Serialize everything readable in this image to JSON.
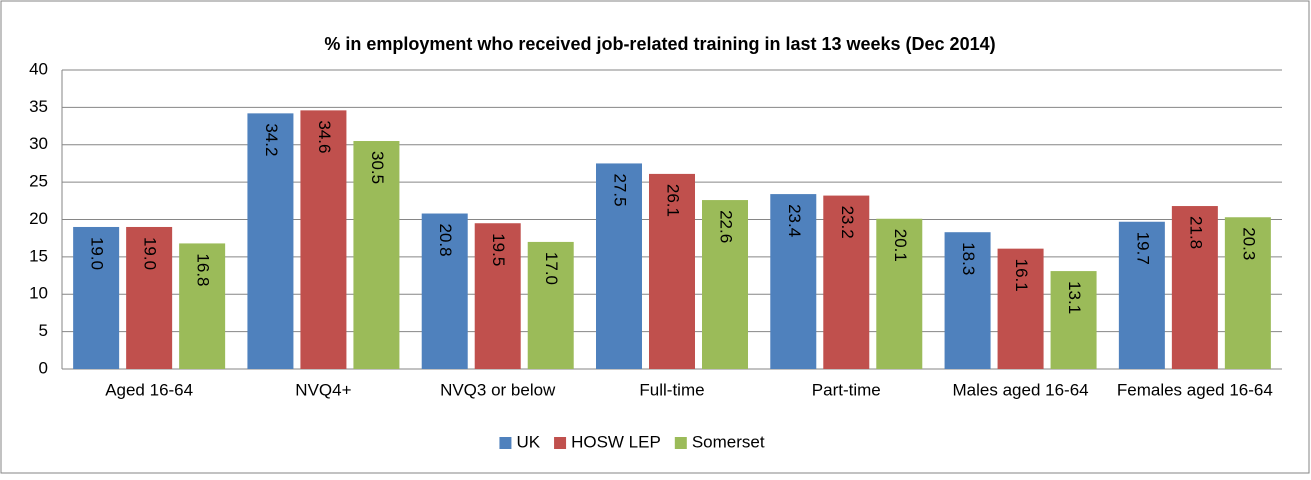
{
  "chart_data": {
    "type": "bar",
    "title": "% in employment who received job-related training in last 13 weeks (Dec 2014)",
    "categories": [
      "Aged 16-64",
      "NVQ4+",
      "NVQ3 or below",
      "Full-time",
      "Part-time",
      "Males aged 16-64",
      "Females aged 16-64"
    ],
    "series": [
      {
        "name": "UK",
        "color": "#4f81bd",
        "values": [
          19.0,
          34.2,
          20.8,
          27.5,
          23.4,
          18.3,
          19.7
        ],
        "value_labels": [
          "19.0",
          "34.2",
          "20.8",
          "27.5",
          "23.4",
          "18.3",
          "19.7"
        ]
      },
      {
        "name": "HOSW LEP",
        "color": "#c0504d",
        "values": [
          19.0,
          34.6,
          19.5,
          26.1,
          23.2,
          16.1,
          21.8
        ],
        "value_labels": [
          "19.0",
          "34.6",
          "19.5",
          "26.1",
          "23.2",
          "16.1",
          "21.8"
        ]
      },
      {
        "name": "Somerset",
        "color": "#9bbb59",
        "values": [
          16.8,
          30.5,
          17.0,
          22.6,
          20.1,
          13.1,
          20.3
        ],
        "value_labels": [
          "16.8",
          "30.5",
          "17.0",
          "22.6",
          "20.1",
          "13.1",
          "20.3"
        ]
      }
    ],
    "ylim": [
      0,
      40
    ],
    "yticks": [
      0,
      5,
      10,
      15,
      20,
      25,
      30,
      35,
      40
    ],
    "grid": true,
    "legend": "bottom"
  }
}
